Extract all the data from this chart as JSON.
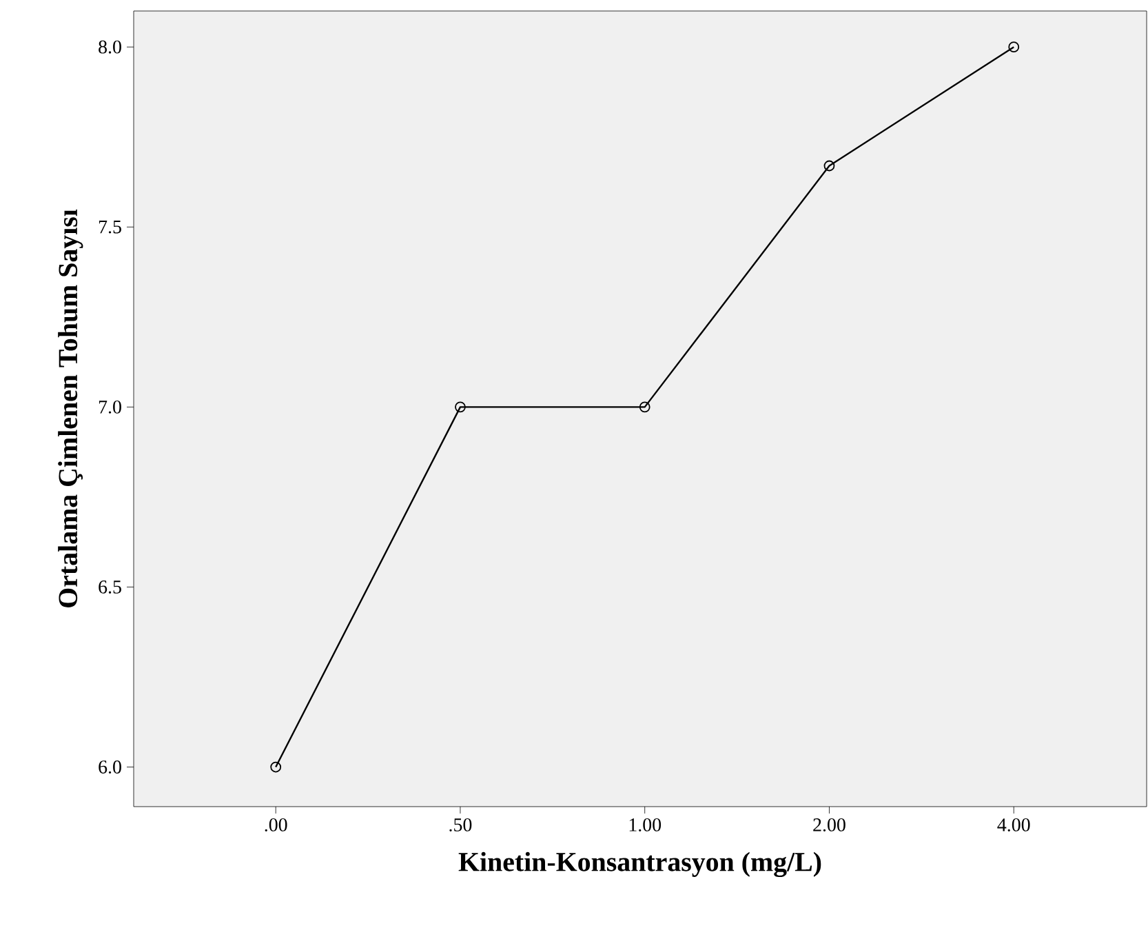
{
  "chart_data": {
    "type": "line",
    "xlabel": "Kinetin-Konsantrasyon (mg/L)",
    "ylabel": "Ortalama Çimlenen Tohum Sayısı",
    "categories": [
      ".00",
      ".50",
      "1.00",
      "2.00",
      "4.00"
    ],
    "series": [
      {
        "color": "#000000",
        "values": [
          6.0,
          7.0,
          7.0,
          7.67,
          8.0
        ]
      }
    ],
    "ylim": [
      5.89,
      8.1
    ],
    "yticks": [
      {
        "value": 6,
        "label": "6.0"
      },
      {
        "value": 6.5,
        "label": "6.5"
      },
      {
        "value": 7,
        "label": "7.0"
      },
      {
        "value": 7.5,
        "label": "7.5"
      },
      {
        "value": 8,
        "label": "8.0"
      }
    ],
    "marker": "circle",
    "line_style": "solid"
  }
}
